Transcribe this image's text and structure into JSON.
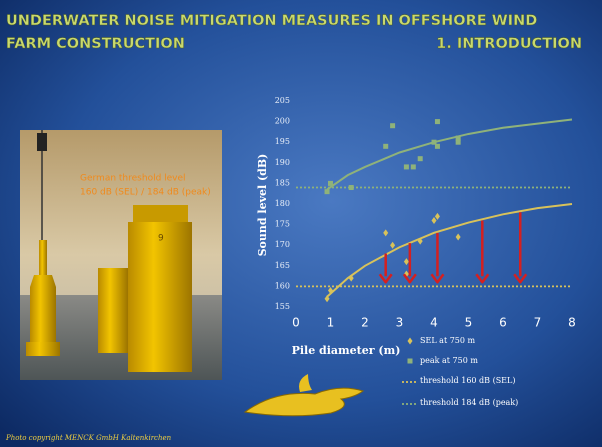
{
  "slide": {
    "title_line1": "UNDERWATER NOISE MITIGATION MEASURES IN OFFSHORE WIND",
    "title_line2": "FARM CONSTRUCTION",
    "section": "1. INTRODUCTION",
    "photo_annotation": [
      "German threshold level",
      "160 dB (SEL) / 184 dB (peak)"
    ],
    "photo_caption": "Photo copyright MENCK GmbH Kaltenkirchen"
  },
  "chart_data": {
    "type": "scatter",
    "xlabel": "Pile diameter (m)",
    "ylabel": "Sound  level  (dB)",
    "xlim": [
      0,
      8
    ],
    "ylim": [
      155,
      205
    ],
    "xticks": [
      0,
      1,
      2,
      3,
      4,
      5,
      6,
      7,
      8
    ],
    "yticks": [
      155,
      160,
      165,
      170,
      175,
      180,
      185,
      190,
      195,
      200,
      205
    ],
    "grid": false,
    "series": [
      {
        "name": "SEL at 750 m",
        "color": "#d8c25a",
        "marker": "diamond",
        "x": [
          0.9,
          1.0,
          1.6,
          2.6,
          2.8,
          3.2,
          3.2,
          3.6,
          4.0,
          4.1,
          4.7
        ],
        "values": [
          157,
          159,
          162,
          173,
          170,
          166,
          163,
          171,
          176,
          177,
          172
        ]
      },
      {
        "name": "peak at 750 m",
        "color": "#8fb27a",
        "marker": "square",
        "x": [
          0.9,
          1.0,
          1.6,
          2.6,
          2.8,
          3.2,
          3.4,
          3.6,
          4.0,
          4.1,
          4.1,
          4.7,
          4.7
        ],
        "values": [
          183,
          185,
          184,
          194,
          199,
          189,
          189,
          191,
          195,
          194,
          200,
          196,
          195
        ]
      }
    ],
    "thresholds": [
      {
        "name": "threshold 160 dB (SEL)",
        "value": 160,
        "color": "#d8c25a"
      },
      {
        "name": "threshold 184 dB (peak)",
        "value": 184,
        "color": "#8fb27a"
      }
    ],
    "trends": [
      {
        "color": "#d8c25a",
        "x": [
          0.9,
          1.5,
          2,
          3,
          4,
          5,
          6,
          7,
          8
        ],
        "values": [
          157.5,
          162,
          165,
          169.5,
          173,
          175.5,
          177.5,
          179,
          180
        ]
      },
      {
        "color": "#8fb27a",
        "x": [
          0.9,
          1.5,
          2,
          3,
          4,
          5,
          6,
          7,
          8
        ],
        "values": [
          183.5,
          187,
          189,
          192.5,
          195,
          197,
          198.5,
          199.5,
          200.5
        ]
      }
    ],
    "arrows": {
      "color": "#d42020",
      "x": [
        2.6,
        3.3,
        4.1,
        5.4,
        6.5
      ],
      "from": [
        168,
        170.5,
        173,
        176,
        178
      ],
      "to": [
        161,
        161,
        161,
        161,
        161
      ]
    }
  }
}
